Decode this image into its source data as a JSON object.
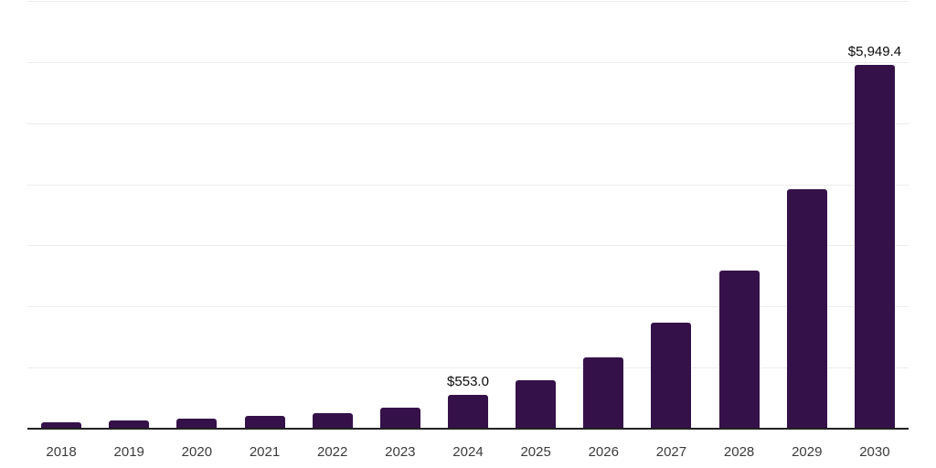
{
  "chart_data": {
    "type": "bar",
    "title": "",
    "xlabel": "",
    "ylabel": "",
    "categories": [
      "2018",
      "2019",
      "2020",
      "2021",
      "2022",
      "2023",
      "2024",
      "2025",
      "2026",
      "2027",
      "2028",
      "2029",
      "2030"
    ],
    "values": [
      100,
      140,
      170,
      210,
      260,
      350,
      553.0,
      790,
      1165,
      1730,
      2590,
      3920,
      5949.4
    ],
    "data_labels": [
      "",
      "",
      "",
      "",
      "",
      "",
      "$553.0",
      "",
      "",
      "",
      "",
      "",
      "$5,949.4"
    ],
    "labeled_points": [
      {
        "category": "2024",
        "label": "$553.0",
        "value": 553.0
      },
      {
        "category": "2030",
        "label": "$5,949.4",
        "value": 5949.4
      }
    ],
    "ylim": [
      0,
      7000
    ],
    "gridline_step": 1000,
    "grid": true,
    "y_tick_labels_visible": false,
    "legend": "none",
    "colors": {
      "bar": "#351149",
      "gridline": "#ededed",
      "axis_line": "#222222",
      "tick_label": "#3b3b3b",
      "value_label": "#0a0a0a",
      "background": "#ffffff"
    }
  }
}
